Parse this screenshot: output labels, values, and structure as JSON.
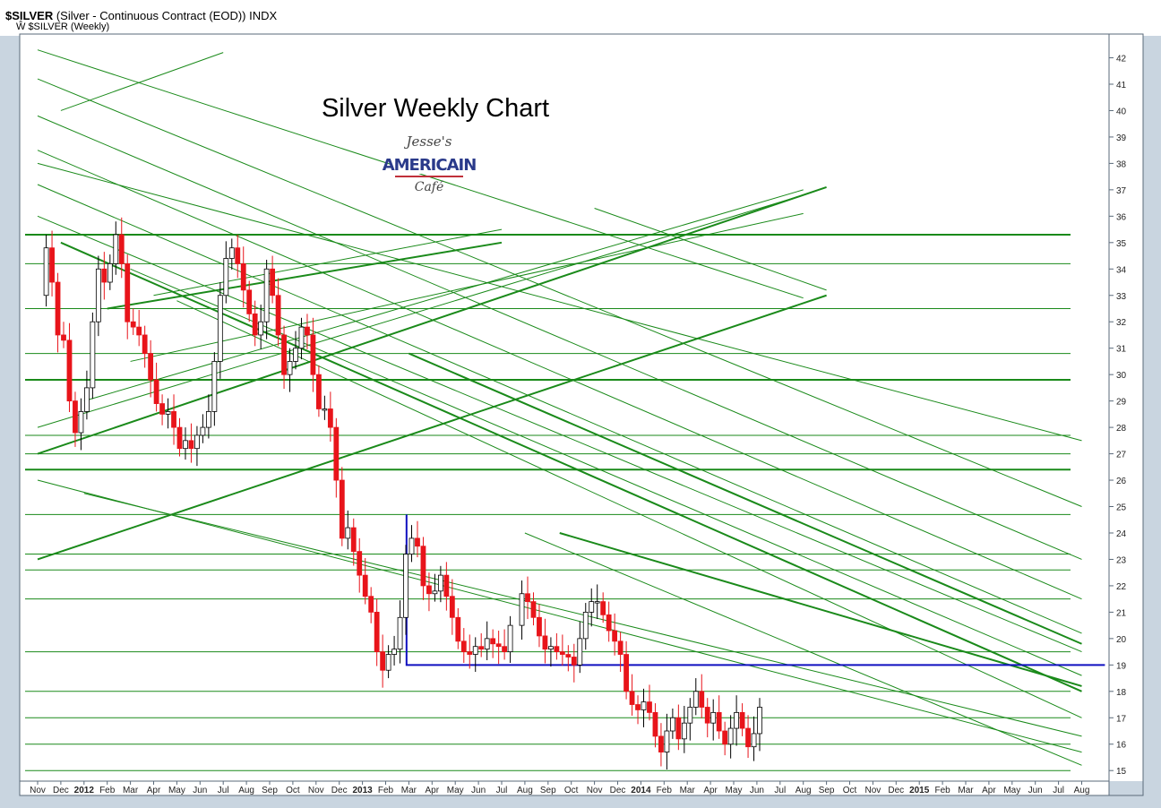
{
  "header": {
    "symbol": "$SILVER",
    "description": "(Silver - Continuous Contract (EOD)) INDX",
    "legend": "Ŵ $SILVER (Weekly)"
  },
  "chart_data": {
    "type": "candlestick",
    "title": "Silver Weekly Chart",
    "logo_text": [
      "Jesse's",
      "AMERICAIN",
      "Café"
    ],
    "y_range": [
      14.6,
      42.9
    ],
    "y_ticks": [
      15,
      16,
      17,
      18,
      19,
      20,
      21,
      22,
      23,
      24,
      25,
      26,
      27,
      28,
      29,
      30,
      31,
      32,
      33,
      34,
      35,
      36,
      37,
      38,
      39,
      40,
      41,
      42
    ],
    "x_range": [
      0,
      46
    ],
    "x_ticks": [
      {
        "label": "Nov",
        "i": 0
      },
      {
        "label": "Dec",
        "i": 1
      },
      {
        "label": "2012",
        "i": 2,
        "bold": true
      },
      {
        "label": "Feb",
        "i": 3
      },
      {
        "label": "Mar",
        "i": 4
      },
      {
        "label": "Apr",
        "i": 5
      },
      {
        "label": "May",
        "i": 6
      },
      {
        "label": "Jun",
        "i": 7
      },
      {
        "label": "Jul",
        "i": 8
      },
      {
        "label": "Aug",
        "i": 9
      },
      {
        "label": "Sep",
        "i": 10
      },
      {
        "label": "Oct",
        "i": 11
      },
      {
        "label": "Nov",
        "i": 12
      },
      {
        "label": "Dec",
        "i": 13
      },
      {
        "label": "2013",
        "i": 14,
        "bold": true
      },
      {
        "label": "Feb",
        "i": 15
      },
      {
        "label": "Mar",
        "i": 16
      },
      {
        "label": "Apr",
        "i": 17
      },
      {
        "label": "May",
        "i": 18
      },
      {
        "label": "Jun",
        "i": 19
      },
      {
        "label": "Jul",
        "i": 20
      },
      {
        "label": "Aug",
        "i": 21
      },
      {
        "label": "Sep",
        "i": 22
      },
      {
        "label": "Oct",
        "i": 23
      },
      {
        "label": "Nov",
        "i": 24
      },
      {
        "label": "Dec",
        "i": 25
      },
      {
        "label": "2014",
        "i": 26,
        "bold": true
      },
      {
        "label": "Feb",
        "i": 27
      },
      {
        "label": "Mar",
        "i": 28
      },
      {
        "label": "Apr",
        "i": 29
      },
      {
        "label": "May",
        "i": 30
      },
      {
        "label": "Jun",
        "i": 31
      },
      {
        "label": "Jul",
        "i": 32
      },
      {
        "label": "Aug",
        "i": 33
      },
      {
        "label": "Sep",
        "i": 34
      },
      {
        "label": "Oct",
        "i": 35
      },
      {
        "label": "Nov",
        "i": 36
      },
      {
        "label": "Dec",
        "i": 37
      },
      {
        "label": "2015",
        "i": 38,
        "bold": true
      },
      {
        "label": "Feb",
        "i": 39
      },
      {
        "label": "Mar",
        "i": 40
      },
      {
        "label": "Apr",
        "i": 41
      },
      {
        "label": "May",
        "i": 42
      },
      {
        "label": "Jun",
        "i": 43
      },
      {
        "label": "Jul",
        "i": 44
      },
      {
        "label": "Aug",
        "i": 45
      }
    ],
    "candle_colors": {
      "up": "#ffffff",
      "down": "#e8141a",
      "outline": "#000000",
      "line": "#1a8a1a",
      "support": "#1010c0"
    },
    "candles_monthly_anchor": [
      [
        0.0,
        33.0
      ],
      [
        0.25,
        34.8
      ],
      [
        0.5,
        33.5
      ],
      [
        0.75,
        31.5
      ],
      [
        1.0,
        31.3
      ],
      [
        1.25,
        29.0
      ],
      [
        1.5,
        27.8
      ],
      [
        1.75,
        28.6
      ],
      [
        2.0,
        29.5
      ],
      [
        2.25,
        32.0
      ],
      [
        2.5,
        34.0
      ],
      [
        2.75,
        33.5
      ],
      [
        3.0,
        34.2
      ],
      [
        3.25,
        35.3
      ],
      [
        3.5,
        34.2
      ],
      [
        3.75,
        32.0
      ],
      [
        4.0,
        31.8
      ],
      [
        4.25,
        31.5
      ],
      [
        4.5,
        30.8
      ],
      [
        4.75,
        29.8
      ],
      [
        5.0,
        28.9
      ],
      [
        5.25,
        28.5
      ],
      [
        5.5,
        28.6
      ],
      [
        5.75,
        28.0
      ],
      [
        6.0,
        27.2
      ],
      [
        6.25,
        27.5
      ],
      [
        6.5,
        27.2
      ],
      [
        6.75,
        27.7
      ],
      [
        7.0,
        28.0
      ],
      [
        7.25,
        28.6
      ],
      [
        7.5,
        30.5
      ],
      [
        7.75,
        33.0
      ],
      [
        8.0,
        34.4
      ],
      [
        8.25,
        34.8
      ],
      [
        8.5,
        34.2
      ],
      [
        8.75,
        33.2
      ],
      [
        9.0,
        32.3
      ],
      [
        9.25,
        31.5
      ],
      [
        9.5,
        32.0
      ],
      [
        9.75,
        34.0
      ],
      [
        10.0,
        33.0
      ],
      [
        10.25,
        31.5
      ],
      [
        10.5,
        30.0
      ],
      [
        10.75,
        30.5
      ],
      [
        11.0,
        31.0
      ],
      [
        11.25,
        31.8
      ],
      [
        11.5,
        31.5
      ],
      [
        11.75,
        30.0
      ],
      [
        12.0,
        28.7
      ],
      [
        12.25,
        28.7
      ],
      [
        12.5,
        28.0
      ],
      [
        12.75,
        26.0
      ],
      [
        13.0,
        23.8
      ],
      [
        13.25,
        24.2
      ],
      [
        13.5,
        23.3
      ],
      [
        13.75,
        22.4
      ],
      [
        14.0,
        21.6
      ],
      [
        14.25,
        21.0
      ],
      [
        14.5,
        19.5
      ],
      [
        14.75,
        18.8
      ],
      [
        15.0,
        19.4
      ],
      [
        15.25,
        19.6
      ],
      [
        15.5,
        20.8
      ],
      [
        15.75,
        23.2
      ],
      [
        16.0,
        23.8
      ],
      [
        16.25,
        23.5
      ],
      [
        16.5,
        22.0
      ],
      [
        16.75,
        21.7
      ],
      [
        17.0,
        21.8
      ],
      [
        17.25,
        22.4
      ],
      [
        17.5,
        21.6
      ],
      [
        17.75,
        20.8
      ],
      [
        18.0,
        19.9
      ],
      [
        18.25,
        19.5
      ],
      [
        18.5,
        19.4
      ],
      [
        18.75,
        19.7
      ],
      [
        19.0,
        19.6
      ],
      [
        19.25,
        20.0
      ],
      [
        19.5,
        19.8
      ],
      [
        19.75,
        19.7
      ],
      [
        20.0,
        19.5
      ],
      [
        20.25,
        20.5
      ],
      [
        20.75,
        21.7
      ],
      [
        21.0,
        21.4
      ],
      [
        21.25,
        20.8
      ],
      [
        21.5,
        20.1
      ],
      [
        21.75,
        19.6
      ],
      [
        22.0,
        19.7
      ],
      [
        22.25,
        19.5
      ],
      [
        22.5,
        19.4
      ],
      [
        22.75,
        19.3
      ],
      [
        23.0,
        19.0
      ],
      [
        23.25,
        20.0
      ],
      [
        23.5,
        21.0
      ],
      [
        23.75,
        21.4
      ],
      [
        24.0,
        21.4
      ],
      [
        24.25,
        20.9
      ],
      [
        24.5,
        20.3
      ],
      [
        24.75,
        19.9
      ],
      [
        25.0,
        19.4
      ],
      [
        25.25,
        18.0
      ],
      [
        25.5,
        17.5
      ],
      [
        25.75,
        17.3
      ],
      [
        26.0,
        17.6
      ],
      [
        26.25,
        17.2
      ],
      [
        26.5,
        16.3
      ],
      [
        26.75,
        15.7
      ],
      [
        27.0,
        16.5
      ],
      [
        27.25,
        17.0
      ],
      [
        27.5,
        16.2
      ],
      [
        27.75,
        16.8
      ],
      [
        28.0,
        17.4
      ],
      [
        28.25,
        18.0
      ],
      [
        28.5,
        17.4
      ],
      [
        28.75,
        16.8
      ],
      [
        29.0,
        17.2
      ],
      [
        29.25,
        16.5
      ],
      [
        29.5,
        16.0
      ],
      [
        29.75,
        16.6
      ],
      [
        30.0,
        17.2
      ],
      [
        30.25,
        16.6
      ],
      [
        30.5,
        15.9
      ],
      [
        30.75,
        16.4
      ],
      [
        31.0,
        17.4
      ]
    ],
    "annotations": {
      "support_level": 19.0,
      "horizontal_levels": [
        35.3,
        34.2,
        32.5,
        30.8,
        29.8,
        27.7,
        27.0,
        26.4,
        24.7,
        23.2,
        22.6,
        21.5,
        19.5,
        18.0,
        17.0,
        16.0,
        15.0
      ]
    }
  }
}
